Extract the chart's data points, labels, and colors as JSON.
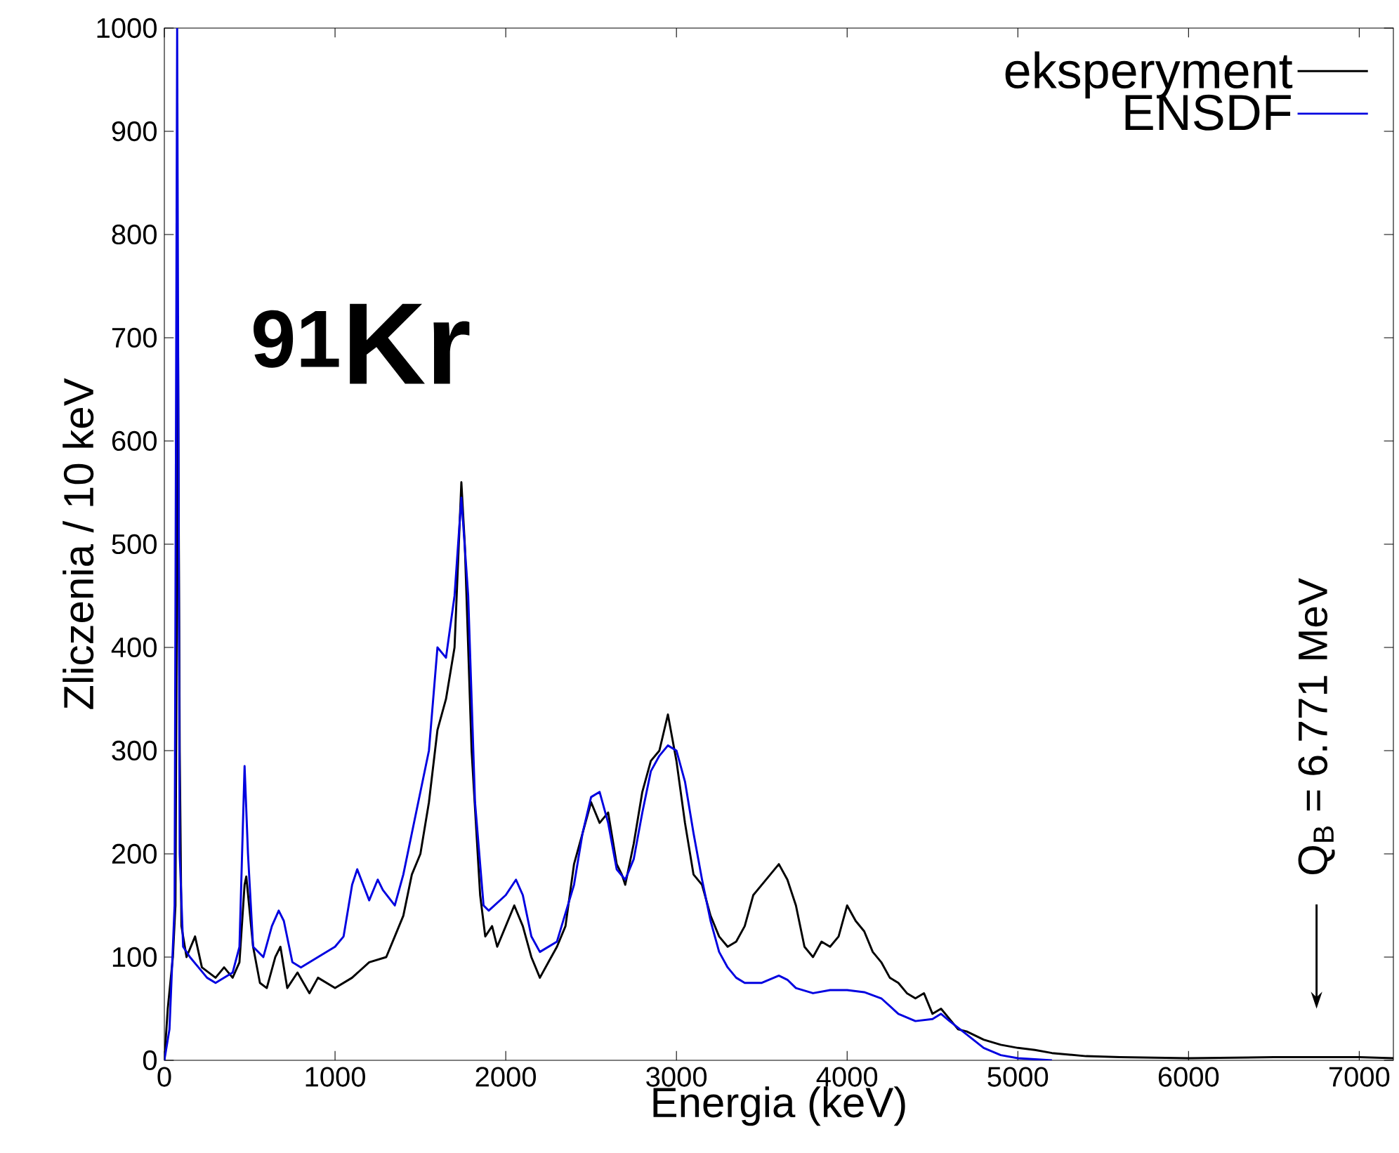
{
  "chart_data": {
    "type": "line",
    "xlabel": "Energia (keV)",
    "ylabel": "Zliczenia / 10 keV",
    "xlim": [
      0,
      7200
    ],
    "ylim": [
      0,
      1000
    ],
    "xticks": [
      0,
      1000,
      2000,
      3000,
      4000,
      5000,
      6000,
      7000
    ],
    "yticks": [
      0,
      100,
      200,
      300,
      400,
      500,
      600,
      700,
      800,
      900,
      1000
    ],
    "grid": false,
    "legend": "top right",
    "marker": "none",
    "line_style": "solid",
    "annotations": [
      "$^{91}$Kr",
      "Q$_{B}$ = 6.771 MeV"
    ],
    "series": [
      {
        "name": "eksperyment",
        "color": "#000000",
        "x": [
          0,
          20,
          50,
          65,
          80,
          90,
          100,
          130,
          180,
          220,
          300,
          350,
          400,
          440,
          470,
          480,
          520,
          560,
          600,
          650,
          680,
          720,
          780,
          850,
          900,
          1000,
          1100,
          1200,
          1300,
          1350,
          1400,
          1450,
          1500,
          1550,
          1600,
          1650,
          1700,
          1740,
          1760,
          1800,
          1850,
          1880,
          1920,
          1950,
          2000,
          2050,
          2100,
          2150,
          2200,
          2250,
          2300,
          2350,
          2400,
          2450,
          2500,
          2550,
          2600,
          2650,
          2680,
          2700,
          2750,
          2800,
          2850,
          2900,
          2950,
          3000,
          3050,
          3100,
          3150,
          3200,
          3250,
          3300,
          3350,
          3400,
          3450,
          3500,
          3550,
          3600,
          3650,
          3700,
          3750,
          3800,
          3850,
          3900,
          3950,
          4000,
          4050,
          4100,
          4150,
          4200,
          4250,
          4300,
          4350,
          4400,
          4450,
          4500,
          4550,
          4600,
          4650,
          4700,
          4800,
          4900,
          5000,
          5100,
          5200,
          5400,
          5600,
          6000,
          6500,
          7000,
          7200
        ],
        "values": [
          0,
          50,
          100,
          150,
          695,
          300,
          130,
          100,
          120,
          90,
          80,
          90,
          80,
          95,
          170,
          178,
          110,
          75,
          70,
          100,
          110,
          70,
          85,
          65,
          80,
          70,
          80,
          95,
          100,
          120,
          140,
          180,
          200,
          250,
          320,
          350,
          400,
          560,
          500,
          300,
          160,
          120,
          130,
          110,
          130,
          150,
          130,
          100,
          80,
          95,
          110,
          130,
          190,
          220,
          250,
          230,
          240,
          190,
          180,
          170,
          210,
          260,
          290,
          300,
          335,
          290,
          230,
          180,
          170,
          140,
          120,
          110,
          115,
          130,
          160,
          170,
          180,
          190,
          175,
          150,
          110,
          100,
          115,
          110,
          120,
          150,
          135,
          125,
          105,
          95,
          80,
          75,
          65,
          60,
          65,
          45,
          50,
          40,
          30,
          28,
          20,
          15,
          12,
          10,
          7,
          4,
          3,
          2,
          3,
          3,
          2
        ]
      },
      {
        "name": "ENSDF",
        "color": "#0000e0",
        "x": [
          0,
          30,
          60,
          75,
          90,
          110,
          150,
          200,
          250,
          300,
          400,
          440,
          470,
          490,
          520,
          580,
          630,
          670,
          700,
          750,
          800,
          900,
          1000,
          1050,
          1100,
          1130,
          1200,
          1250,
          1280,
          1350,
          1400,
          1450,
          1500,
          1550,
          1600,
          1650,
          1700,
          1740,
          1780,
          1820,
          1870,
          1900,
          2000,
          2060,
          2100,
          2150,
          2200,
          2300,
          2400,
          2450,
          2500,
          2550,
          2600,
          2650,
          2700,
          2750,
          2800,
          2850,
          2900,
          2950,
          3000,
          3050,
          3100,
          3150,
          3200,
          3250,
          3300,
          3350,
          3400,
          3500,
          3600,
          3650,
          3700,
          3800,
          3900,
          4000,
          4100,
          4200,
          4300,
          4400,
          4500,
          4550,
          4600,
          4700,
          4800,
          4900,
          5000,
          5100,
          5200
        ],
        "values": [
          0,
          30,
          150,
          1000,
          200,
          110,
          100,
          90,
          80,
          75,
          85,
          110,
          285,
          200,
          110,
          100,
          130,
          145,
          135,
          95,
          90,
          100,
          110,
          120,
          170,
          185,
          155,
          175,
          165,
          150,
          180,
          220,
          260,
          300,
          400,
          390,
          450,
          545,
          450,
          250,
          150,
          145,
          160,
          175,
          160,
          120,
          105,
          115,
          170,
          220,
          255,
          260,
          230,
          185,
          175,
          195,
          240,
          280,
          295,
          305,
          300,
          270,
          220,
          175,
          135,
          105,
          90,
          80,
          75,
          75,
          82,
          78,
          70,
          65,
          68,
          68,
          66,
          60,
          45,
          38,
          40,
          45,
          38,
          25,
          12,
          5,
          2,
          1,
          0
        ]
      }
    ]
  }
}
